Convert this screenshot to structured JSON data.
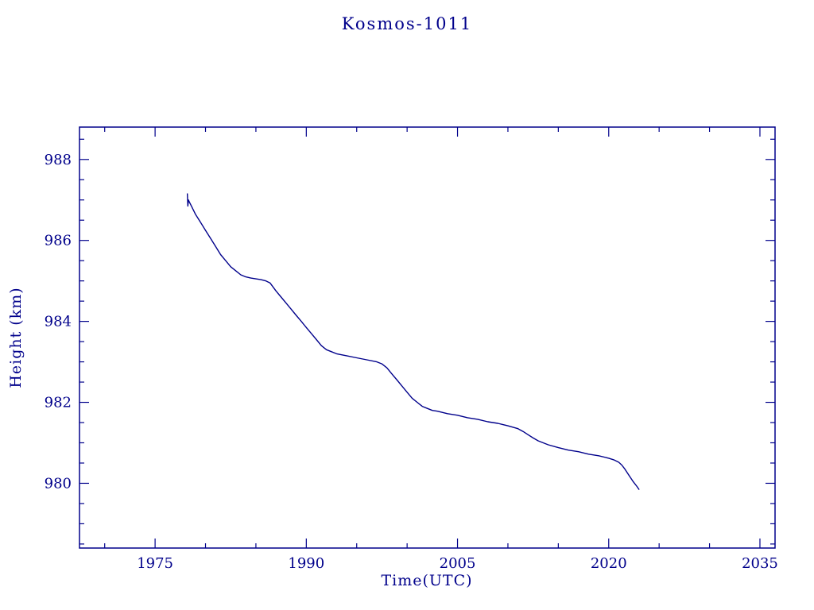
{
  "colors": {
    "accent": "#00008B",
    "line": "#00008B",
    "background": "#ffffff"
  },
  "chart_data": {
    "type": "line",
    "title": "Kosmos-1011",
    "xlabel": "Time(UTC)",
    "ylabel": "Height (km)",
    "xlim": [
      1967.5,
      2036.5
    ],
    "ylim": [
      978.4,
      988.8
    ],
    "xticks": [
      1975,
      1990,
      2005,
      2020,
      2035
    ],
    "yticks": [
      980,
      982,
      984,
      986,
      988
    ],
    "x_minor_step": 5,
    "y_minor_step": 0.5,
    "grid": false,
    "legend": "none",
    "series": [
      {
        "name": "height",
        "x": [
          1978.2,
          1978.25,
          1978.3,
          1978.4,
          1978.6,
          1979.0,
          1979.5,
          1980.0,
          1980.5,
          1981.0,
          1981.5,
          1982.0,
          1982.5,
          1983.0,
          1983.5,
          1984.0,
          1984.5,
          1985.0,
          1985.5,
          1986.0,
          1986.4,
          1987.0,
          1987.5,
          1988.0,
          1988.5,
          1989.0,
          1989.5,
          1990.0,
          1990.5,
          1991.0,
          1991.5,
          1992.0,
          1992.5,
          1993.0,
          1994.0,
          1995.0,
          1996.0,
          1997.0,
          1997.5,
          1998.0,
          1998.5,
          1999.0,
          1999.5,
          2000.0,
          2000.5,
          2001.0,
          2001.5,
          2002.0,
          2002.5,
          2003.0,
          2004.0,
          2005.0,
          2006.0,
          2007.0,
          2008.0,
          2009.0,
          2010.0,
          2011.0,
          2011.5,
          2012.0,
          2012.5,
          2013.0,
          2013.5,
          2014.0,
          2015.0,
          2016.0,
          2017.0,
          2018.0,
          2019.0,
          2020.0,
          2020.5,
          2021.0,
          2021.3,
          2021.6,
          2022.0,
          2022.4,
          2022.8,
          2023.0
        ],
        "y": [
          987.15,
          986.85,
          987.0,
          986.95,
          986.85,
          986.65,
          986.45,
          986.25,
          986.05,
          985.85,
          985.65,
          985.5,
          985.35,
          985.25,
          985.15,
          985.1,
          985.07,
          985.05,
          985.03,
          985.0,
          984.95,
          984.75,
          984.6,
          984.45,
          984.3,
          984.15,
          984.0,
          983.85,
          983.7,
          983.55,
          983.4,
          983.3,
          983.25,
          983.2,
          983.15,
          983.1,
          983.05,
          983.0,
          982.95,
          982.85,
          982.7,
          982.55,
          982.4,
          982.25,
          982.1,
          982.0,
          981.9,
          981.85,
          981.8,
          981.78,
          981.72,
          981.68,
          981.62,
          981.58,
          981.52,
          981.48,
          981.42,
          981.35,
          981.28,
          981.2,
          981.12,
          981.05,
          981.0,
          980.95,
          980.88,
          980.82,
          980.78,
          980.72,
          980.68,
          980.62,
          980.58,
          980.52,
          980.45,
          980.35,
          980.2,
          980.05,
          979.92,
          979.85
        ]
      }
    ]
  }
}
